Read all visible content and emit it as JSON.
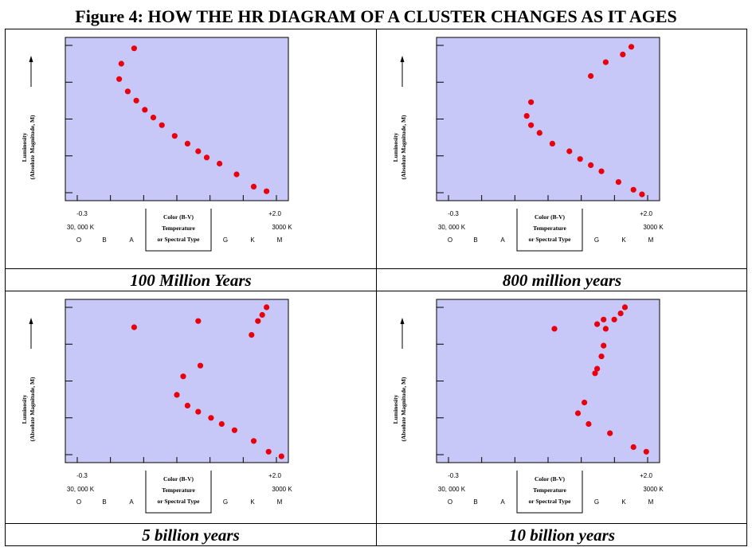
{
  "figure_title": "Figure 4:  HOW THE HR DIAGRAM OF A CLUSTER CHANGES AS IT AGES",
  "colors": {
    "plot_background": "#c8c8f8",
    "point": "#e8000d",
    "frame": "#000000"
  },
  "chart_data": [
    {
      "type": "scatter",
      "caption": "100 Million Years",
      "ylabel": "Luminosity",
      "ylabel_sub": "(Absolute Magnitude, M)",
      "x_tick_labels": {
        "left": "-0.3",
        "right": "+2.0"
      },
      "x_temp_labels": {
        "left": "30, 000 K",
        "right": "3000 K"
      },
      "spectral_types": [
        "O",
        "B",
        "A",
        "G",
        "K",
        "M"
      ],
      "axis_box": [
        "Color (B-V)",
        "Temperature",
        "or Spectral Type"
      ],
      "xlim": [
        0,
        10
      ],
      "ylim": [
        0,
        10
      ],
      "grid": false,
      "points": [
        [
          3.0,
          9.6
        ],
        [
          2.4,
          8.6
        ],
        [
          2.3,
          7.6
        ],
        [
          2.7,
          6.8
        ],
        [
          3.1,
          6.2
        ],
        [
          3.5,
          5.6
        ],
        [
          3.9,
          5.1
        ],
        [
          4.3,
          4.6
        ],
        [
          4.9,
          3.9
        ],
        [
          5.5,
          3.4
        ],
        [
          6.0,
          2.9
        ],
        [
          6.4,
          2.5
        ],
        [
          7.0,
          2.1
        ],
        [
          7.8,
          1.4
        ],
        [
          8.6,
          0.6
        ],
        [
          9.2,
          0.3
        ]
      ]
    },
    {
      "type": "scatter",
      "caption": "800 million years",
      "ylabel": "Luminosity",
      "ylabel_sub": "(Absolute Magnitude, M)",
      "x_tick_labels": {
        "left": "-0.3",
        "right": "+2.0"
      },
      "x_temp_labels": {
        "left": "30, 000 K",
        "right": "3000 K"
      },
      "spectral_types": [
        "O",
        "B",
        "A",
        "G",
        "K",
        "M"
      ],
      "axis_box": [
        "Color (B-V)",
        "Temperature",
        "or Spectral Type"
      ],
      "xlim": [
        0,
        10
      ],
      "ylim": [
        0,
        10
      ],
      "grid": false,
      "points": [
        [
          8.9,
          9.7
        ],
        [
          8.5,
          9.2
        ],
        [
          7.7,
          8.7
        ],
        [
          7.0,
          7.8
        ],
        [
          4.2,
          6.1
        ],
        [
          4.0,
          5.2
        ],
        [
          4.2,
          4.6
        ],
        [
          4.6,
          4.1
        ],
        [
          5.2,
          3.4
        ],
        [
          6.0,
          2.9
        ],
        [
          6.5,
          2.4
        ],
        [
          7.0,
          2.0
        ],
        [
          7.5,
          1.6
        ],
        [
          8.3,
          0.9
        ],
        [
          9.0,
          0.4
        ],
        [
          9.4,
          0.1
        ]
      ]
    },
    {
      "type": "scatter",
      "caption": "5 billion years",
      "ylabel": "Luminosity",
      "ylabel_sub": "(Absolute Magnitude, M)",
      "x_tick_labels": {
        "left": "-0.3",
        "right": "+2.0"
      },
      "x_temp_labels": {
        "left": "30, 000 K",
        "right": "3000 K"
      },
      "spectral_types": [
        "O",
        "B",
        "A",
        "G",
        "K",
        "M"
      ],
      "axis_box": [
        "Color (B-V)",
        "Temperature",
        "or Spectral Type"
      ],
      "xlim": [
        0,
        10
      ],
      "ylim": [
        0,
        10
      ],
      "grid": false,
      "points": [
        [
          9.2,
          9.8
        ],
        [
          9.0,
          9.3
        ],
        [
          8.8,
          8.9
        ],
        [
          8.5,
          8.0
        ],
        [
          3.0,
          8.5
        ],
        [
          6.0,
          8.9
        ],
        [
          6.1,
          6.0
        ],
        [
          5.3,
          5.3
        ],
        [
          5.0,
          4.1
        ],
        [
          5.5,
          3.4
        ],
        [
          6.0,
          3.0
        ],
        [
          6.6,
          2.6
        ],
        [
          7.1,
          2.2
        ],
        [
          7.7,
          1.8
        ],
        [
          8.6,
          1.1
        ],
        [
          9.3,
          0.4
        ],
        [
          9.9,
          0.1
        ]
      ]
    },
    {
      "type": "scatter",
      "caption": "10 billion years",
      "ylabel": "Luminosity",
      "ylabel_sub": "(Absolute Magnitude, M)",
      "x_tick_labels": {
        "left": "-0.3",
        "right": "+2.0"
      },
      "x_temp_labels": {
        "left": "30, 000 K",
        "right": "3000 K"
      },
      "spectral_types": [
        "O",
        "B",
        "A",
        "G",
        "K",
        "M"
      ],
      "axis_box": [
        "Color (B-V)",
        "Temperature",
        "or Spectral Type"
      ],
      "xlim": [
        0,
        10
      ],
      "ylim": [
        0,
        10
      ],
      "grid": false,
      "points": [
        [
          8.6,
          9.8
        ],
        [
          8.4,
          9.4
        ],
        [
          8.1,
          9.0
        ],
        [
          7.6,
          9.0
        ],
        [
          7.7,
          8.4
        ],
        [
          5.3,
          8.4
        ],
        [
          7.3,
          8.7
        ],
        [
          7.6,
          7.3
        ],
        [
          7.5,
          6.6
        ],
        [
          7.3,
          5.8
        ],
        [
          7.2,
          5.5
        ],
        [
          6.7,
          3.6
        ],
        [
          6.4,
          2.9
        ],
        [
          6.9,
          2.2
        ],
        [
          7.9,
          1.6
        ],
        [
          9.0,
          0.7
        ],
        [
          9.6,
          0.4
        ]
      ]
    }
  ]
}
